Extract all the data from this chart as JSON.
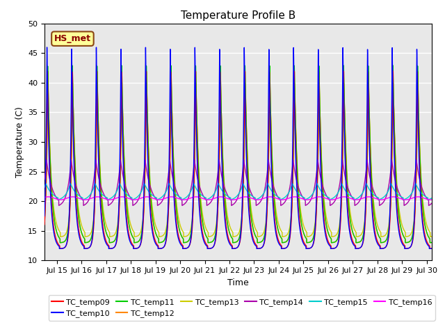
{
  "title": "Temperature Profile B",
  "xlabel": "Time",
  "ylabel": "Temperature (C)",
  "ylim": [
    10,
    50
  ],
  "xlim_days": [
    14.5,
    30.2
  ],
  "annotation_text": "HS_met",
  "annotation_color": "#8B0000",
  "annotation_bg": "#FFFF99",
  "annotation_border": "#8B4513",
  "series": [
    {
      "name": "TC_temp09",
      "color": "#FF0000"
    },
    {
      "name": "TC_temp10",
      "color": "#0000FF"
    },
    {
      "name": "TC_temp11",
      "color": "#00CC00"
    },
    {
      "name": "TC_temp12",
      "color": "#FF8800"
    },
    {
      "name": "TC_temp13",
      "color": "#CCCC00"
    },
    {
      "name": "TC_temp14",
      "color": "#AA00AA"
    },
    {
      "name": "TC_temp15",
      "color": "#00CCCC"
    },
    {
      "name": "TC_temp16",
      "color": "#FF00FF"
    }
  ],
  "xtick_labels": [
    "Jul 15",
    "Jul 16",
    "Jul 17",
    "Jul 18",
    "Jul 19",
    "Jul 20",
    "Jul 21",
    "Jul 22",
    "Jul 23",
    "Jul 24",
    "Jul 25",
    "Jul 26",
    "Jul 27",
    "Jul 28",
    "Jul 29",
    "Jul 30"
  ],
  "xtick_positions": [
    15,
    16,
    17,
    18,
    19,
    20,
    21,
    22,
    23,
    24,
    25,
    26,
    27,
    28,
    29,
    30
  ],
  "background_color": "#E8E8E8",
  "grid_color": "#FFFFFF",
  "fig_bg": "#FFFFFF"
}
